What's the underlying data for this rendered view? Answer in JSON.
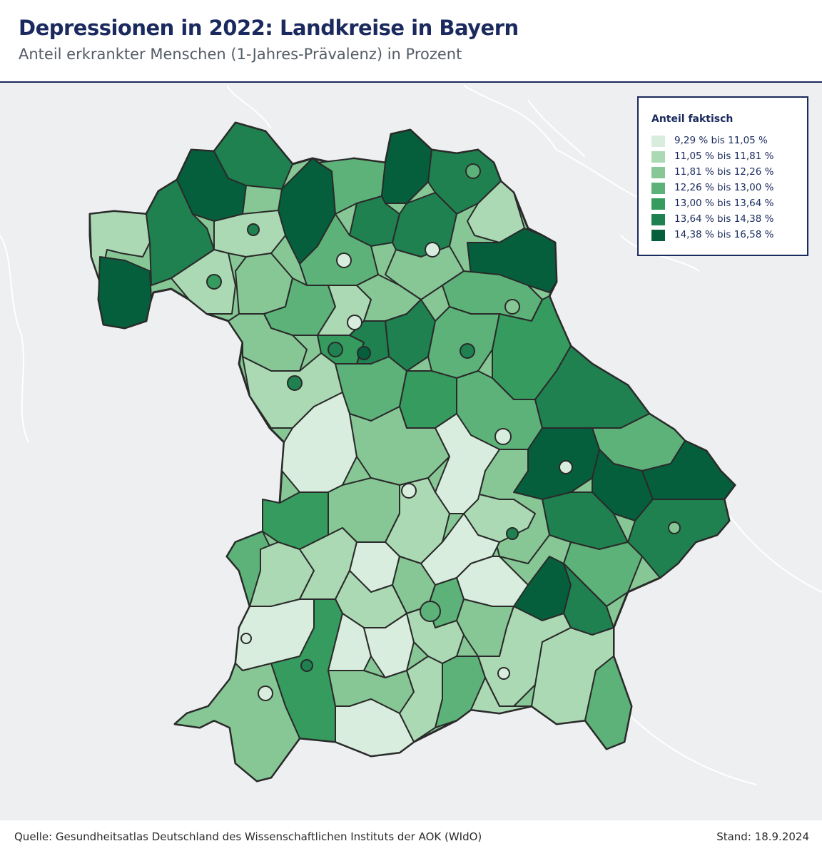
{
  "header": {
    "title": "Depressionen in 2022: Landkreise in Bayern",
    "subtitle": "Anteil erkrankter Menschen (1-Jahres-Prävalenz) in Prozent"
  },
  "legend": {
    "title": "Anteil faktisch",
    "classes": [
      {
        "label": "9,29 % bis 11,05 %",
        "color": "#d8eddd"
      },
      {
        "label": "11,05 % bis 11,81 %",
        "color": "#abd9b3"
      },
      {
        "label": "11,81 % bis 12,26 %",
        "color": "#86c795"
      },
      {
        "label": "12,26 % bis 13,00 %",
        "color": "#5cb278"
      },
      {
        "label": "13,00 % bis 13,64 %",
        "color": "#369b5e"
      },
      {
        "label": "13,64 % bis 14,38 %",
        "color": "#1f8050"
      },
      {
        "label": "14,38 % bis 16,58 %",
        "color": "#055f3c"
      }
    ]
  },
  "colors": {
    "title": "#1a2a5e",
    "background_land": "#eeeff1",
    "border": "#2a2a2a"
  },
  "footer": {
    "source": "Quelle: Gesundheitsatlas Deutschland des Wissenschaftlichen Instituts der AOK (WIdO)",
    "stand": "Stand: 18.9.2024"
  }
}
